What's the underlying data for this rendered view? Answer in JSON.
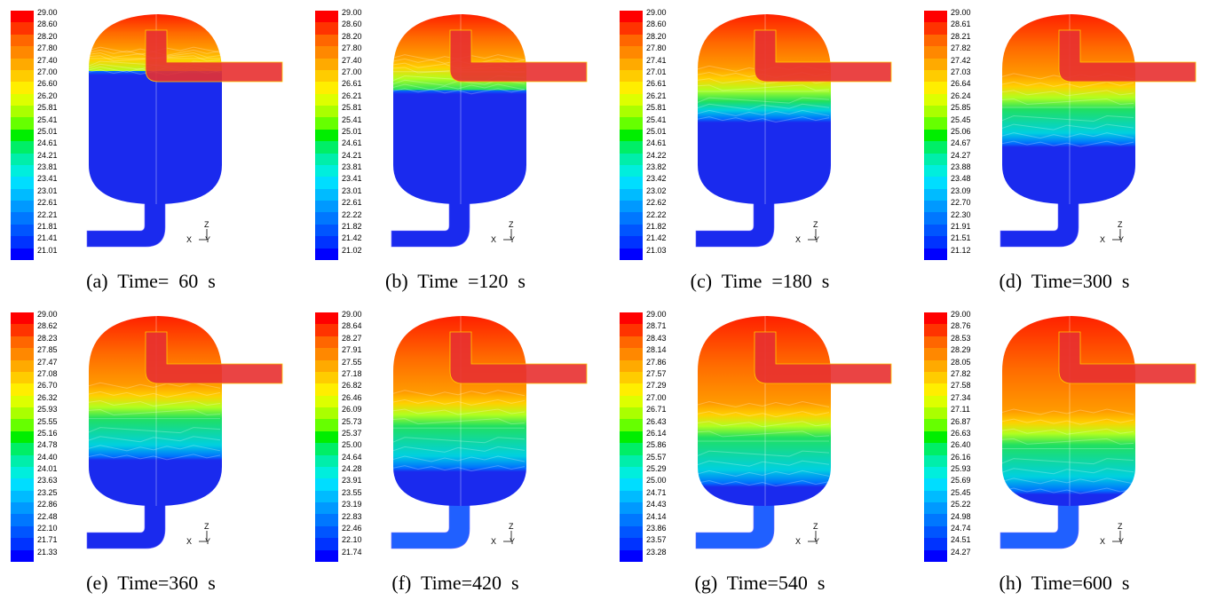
{
  "panels": [
    {
      "caption": "(a)  Time=  60  s",
      "ticks": [
        "29.00",
        "28.60",
        "28.20",
        "27.80",
        "27.40",
        "27.00",
        "26.60",
        "26.20",
        "25.81",
        "25.41",
        "25.01",
        "24.61",
        "24.21",
        "23.81",
        "23.41",
        "23.01",
        "22.61",
        "22.21",
        "21.81",
        "21.41",
        "21.01"
      ],
      "hot_level": 0.18,
      "warm_level": 0.3
    },
    {
      "caption": "(b)  Time  =120  s",
      "ticks": [
        "29.00",
        "28.60",
        "28.20",
        "27.80",
        "27.40",
        "27.00",
        "26.61",
        "26.21",
        "25.81",
        "25.41",
        "25.01",
        "24.61",
        "24.21",
        "23.81",
        "23.41",
        "23.01",
        "22.61",
        "22.22",
        "21.82",
        "21.42",
        "21.02"
      ],
      "hot_level": 0.22,
      "warm_level": 0.4
    },
    {
      "caption": "(c)  Time  =180  s",
      "ticks": [
        "29.00",
        "28.60",
        "28.20",
        "27.80",
        "27.41",
        "27.01",
        "26.61",
        "26.21",
        "25.81",
        "25.41",
        "25.01",
        "24.61",
        "24.22",
        "23.82",
        "23.42",
        "23.02",
        "22.62",
        "22.22",
        "21.82",
        "21.42",
        "21.03"
      ],
      "hot_level": 0.28,
      "warm_level": 0.55
    },
    {
      "caption": "(d)  Time=300  s",
      "ticks": [
        "29.00",
        "28.61",
        "28.21",
        "27.82",
        "27.42",
        "27.03",
        "26.64",
        "26.24",
        "25.85",
        "25.45",
        "25.06",
        "24.67",
        "24.27",
        "23.88",
        "23.48",
        "23.09",
        "22.70",
        "22.30",
        "21.91",
        "21.51",
        "21.12"
      ],
      "hot_level": 0.32,
      "warm_level": 0.68
    },
    {
      "caption": "(e)  Time=360  s",
      "ticks": [
        "29.00",
        "28.62",
        "28.23",
        "27.85",
        "27.47",
        "27.08",
        "26.70",
        "26.32",
        "25.93",
        "25.55",
        "25.16",
        "24.78",
        "24.40",
        "24.01",
        "23.63",
        "23.25",
        "22.86",
        "22.48",
        "22.10",
        "21.71",
        "21.33"
      ],
      "hot_level": 0.36,
      "warm_level": 0.74
    },
    {
      "caption": "(f)  Time=420  s",
      "ticks": [
        "29.00",
        "28.64",
        "28.27",
        "27.91",
        "27.55",
        "27.18",
        "26.82",
        "26.46",
        "26.09",
        "25.73",
        "25.37",
        "25.00",
        "24.64",
        "24.28",
        "23.91",
        "23.55",
        "23.19",
        "22.83",
        "22.46",
        "22.10",
        "21.74"
      ],
      "hot_level": 0.4,
      "warm_level": 0.8
    },
    {
      "caption": "(g)  Time=540  s",
      "ticks": [
        "29.00",
        "28.71",
        "28.43",
        "28.14",
        "27.86",
        "27.57",
        "27.29",
        "27.00",
        "26.71",
        "26.43",
        "26.14",
        "25.86",
        "25.57",
        "25.29",
        "25.00",
        "24.71",
        "24.43",
        "24.14",
        "23.86",
        "23.57",
        "23.28"
      ],
      "hot_level": 0.46,
      "warm_level": 0.88
    },
    {
      "caption": "(h)  Time=600  s",
      "ticks": [
        "29.00",
        "28.76",
        "28.53",
        "28.29",
        "28.05",
        "27.82",
        "27.58",
        "27.34",
        "27.11",
        "26.87",
        "26.63",
        "26.40",
        "26.16",
        "25.93",
        "25.69",
        "25.45",
        "25.22",
        "24.98",
        "24.74",
        "24.51",
        "24.27"
      ],
      "hot_level": 0.5,
      "warm_level": 0.92
    }
  ],
  "axis_labels": {
    "z": "Z",
    "x": "X",
    "y": "Y"
  },
  "colors": [
    "#ff0000",
    "#ff3300",
    "#ff6600",
    "#ff8800",
    "#ffaa00",
    "#ffcc00",
    "#ffee00",
    "#ddff00",
    "#aaff00",
    "#66ff00",
    "#00ee00",
    "#00ee66",
    "#00eeaa",
    "#00eedd",
    "#00ddff",
    "#00bbff",
    "#0099ff",
    "#0077ff",
    "#0055ff",
    "#0033ff",
    "#0000ff"
  ]
}
